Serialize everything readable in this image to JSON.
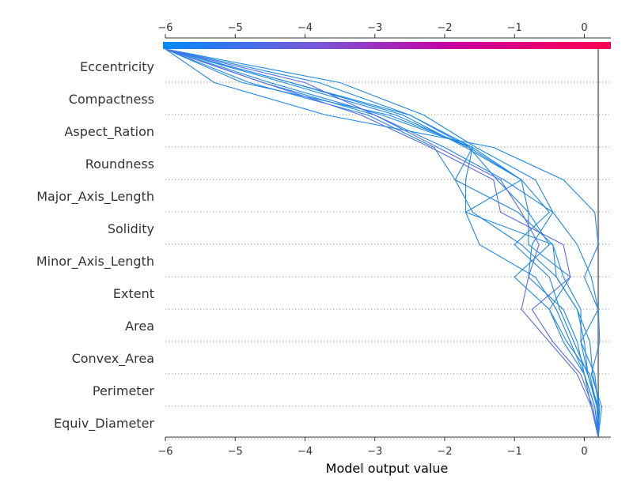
{
  "chart_data": {
    "type": "line",
    "chart_kind": "shap-decision-plot",
    "title": "",
    "xlabel": "Model output value",
    "ylabel": "",
    "xlim": [
      -6.0,
      0.38
    ],
    "xticks": [
      -6,
      -5,
      -4,
      -3,
      -2,
      -1,
      0
    ],
    "xtick_labels": [
      "−6",
      "−5",
      "−4",
      "−3",
      "−2",
      "−1",
      "0"
    ],
    "base_value": 0.2,
    "grid": "dotted horizontal per feature",
    "legend": "none",
    "colorbar": {
      "position": "top",
      "colors": [
        "#008bfb",
        "#7b55d8",
        "#c8009f",
        "#ff0051"
      ]
    },
    "features": [
      "Equiv_Diameter",
      "Perimeter",
      "Convex_Area",
      "Area",
      "Extent",
      "Minor_Axis_Length",
      "Solidity",
      "Major_Axis_Length",
      "Roundness",
      "Aspect_Ration",
      "Compactness",
      "Eccentricity"
    ],
    "series": [
      {
        "color": "#1e88e5",
        "values": [
          0.2,
          0.25,
          0.1,
          0.22,
          0.2,
          0.0,
          0.2,
          0.15,
          -0.3,
          -1.3,
          -3.7,
          -5.3,
          -6.0
        ]
      },
      {
        "color": "#1e88e5",
        "values": [
          0.2,
          0.18,
          0.05,
          -0.15,
          -0.35,
          -0.5,
          -1.0,
          -0.5,
          -0.9,
          -1.6,
          -2.9,
          -4.5,
          -6.0
        ]
      },
      {
        "color": "#1e88e5",
        "values": [
          0.2,
          0.15,
          0.0,
          -0.3,
          -0.5,
          -0.2,
          -0.8,
          -0.8,
          -0.9,
          -1.7,
          -2.6,
          -4.2,
          -6.0
        ]
      },
      {
        "color": "#1e88e5",
        "values": [
          0.2,
          0.22,
          0.12,
          0.08,
          -0.1,
          -0.4,
          -0.9,
          -1.6,
          -1.85,
          -2.15,
          -3.1,
          -4.8,
          -6.0
        ]
      },
      {
        "color": "#1e88e5",
        "values": [
          0.2,
          0.18,
          0.05,
          -0.05,
          -0.05,
          -0.3,
          -0.45,
          -1.7,
          -1.7,
          -1.6,
          -2.8,
          -4.9,
          -6.0
        ]
      },
      {
        "color": "#1e88e5",
        "values": [
          0.2,
          0.1,
          0.0,
          -0.2,
          -0.4,
          -0.7,
          -1.5,
          -1.7,
          -0.9,
          -1.65,
          -2.5,
          -3.8,
          -6.0
        ]
      },
      {
        "color": "#1e88e5",
        "values": [
          0.2,
          0.15,
          0.0,
          -0.1,
          -0.3,
          -0.8,
          -0.75,
          -0.45,
          -0.7,
          -1.55,
          -2.3,
          -3.5,
          -6.0
        ]
      },
      {
        "color": "#1e88e5",
        "values": [
          0.2,
          0.2,
          0.05,
          0.0,
          -0.1,
          -0.4,
          -0.45,
          -0.95,
          -1.85,
          -1.6,
          -2.5,
          -4.2,
          -6.0
        ]
      },
      {
        "color": "#1e88e5",
        "values": [
          0.2,
          0.2,
          0.15,
          -0.05,
          0.2,
          0.1,
          -0.1,
          -0.45,
          -1.15,
          -2.0,
          -3.0,
          -4.6,
          -6.0
        ]
      },
      {
        "color": "#1e88e5",
        "values": [
          0.2,
          0.18,
          0.08,
          -0.25,
          -0.5,
          -1.0,
          -0.5,
          -0.8,
          -1.25,
          -1.65,
          -2.7,
          -4.3,
          -6.0
        ]
      },
      {
        "color": "#5a6ae8",
        "values": [
          0.2,
          0.12,
          -0.05,
          -0.45,
          -0.75,
          -0.2,
          -0.3,
          -1.2,
          -1.3,
          -2.2,
          -3.2,
          -4.6,
          -6.0
        ]
      },
      {
        "color": "#5a6ae8",
        "values": [
          0.2,
          0.1,
          -0.1,
          -0.5,
          -0.9,
          -0.8,
          -0.65,
          -0.9,
          -1.2,
          -2.1,
          -3.0,
          -4.0,
          -6.0
        ]
      }
    ]
  }
}
